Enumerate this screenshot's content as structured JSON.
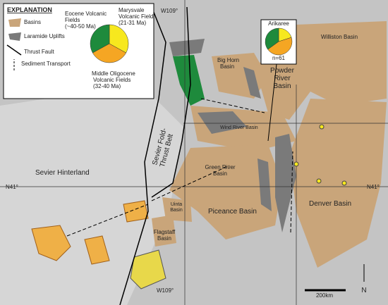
{
  "legend": {
    "title": "EXPLANATION",
    "items": [
      "Basins",
      "Laramide Uplifts",
      "Thrust Fault",
      "Sediment Transport"
    ],
    "pie": {
      "segments": [
        {
          "label": [
            "Marysvale",
            "Volcanic Field",
            "(21-31 Ma)"
          ],
          "value": 33,
          "color": "#f7e81e"
        },
        {
          "label": [
            "Middle Oligocene",
            "Volcanic Fields",
            "(32-40 Ma)"
          ],
          "value": 34,
          "color": "#f5a623"
        },
        {
          "label": [
            "Eocene Volcanic",
            "Fields",
            "(~40-50 Ma)"
          ],
          "value": 33,
          "color": "#1e8a3c"
        }
      ]
    }
  },
  "arikaree": {
    "title": "Arikaree",
    "n": "n=61",
    "segments": [
      {
        "value": 20,
        "color": "#f7e81e"
      },
      {
        "value": 45,
        "color": "#f5a623"
      },
      {
        "value": 35,
        "color": "#1e8a3c"
      }
    ]
  },
  "map_labels": {
    "w109_top": "W109°",
    "w109_bottom": "W109°",
    "williston": "Williston Basin",
    "big_horn": [
      "Big Horn",
      "Basin"
    ],
    "powder_river": [
      "Powder",
      "River",
      "Basin"
    ],
    "wind_river": "Wind River Basin",
    "green_river": [
      "Green River",
      "Basin"
    ],
    "sevier_belt": [
      "Sevier Fold-",
      "Thrust Belt"
    ],
    "sevier_hinterland": "Sevier Hinterland",
    "n41_left": "N41°",
    "n41_right": "N41°",
    "uinta": [
      "Uinta",
      "Basin"
    ],
    "piceance": "Piceance Basin",
    "flagstaff": [
      "Flagstaff",
      "Basin"
    ],
    "denver": "Denver Basin",
    "scale": "200km",
    "north": "N"
  }
}
